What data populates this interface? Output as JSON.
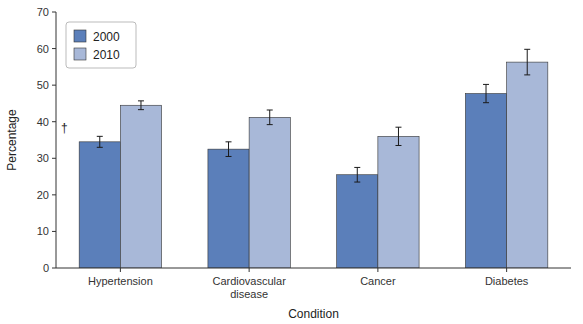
{
  "chart_data": {
    "type": "bar",
    "categories": [
      "Hypertension",
      "Cardiovascular\ndisease",
      "Cancer",
      "Diabetes"
    ],
    "series": [
      {
        "name": "2000",
        "color": "#5b7fba",
        "values": [
          34.5,
          32.5,
          25.5,
          47.7
        ],
        "errors": [
          1.5,
          2.0,
          2.0,
          2.5
        ]
      },
      {
        "name": "2010",
        "color": "#a8b8d8",
        "values": [
          44.5,
          41.2,
          36.0,
          56.3
        ],
        "errors": [
          1.2,
          2.0,
          2.5,
          3.5
        ]
      }
    ],
    "x_label": "Condition",
    "y_label": "Percentage",
    "ylim": [
      0,
      70
    ],
    "yticks": [
      0,
      10,
      20,
      30,
      40,
      50,
      60,
      70
    ],
    "grid": false,
    "legend": "upper left",
    "annotations": [
      {
        "text": "†",
        "category": "Hypertension",
        "series": "2000"
      }
    ]
  }
}
